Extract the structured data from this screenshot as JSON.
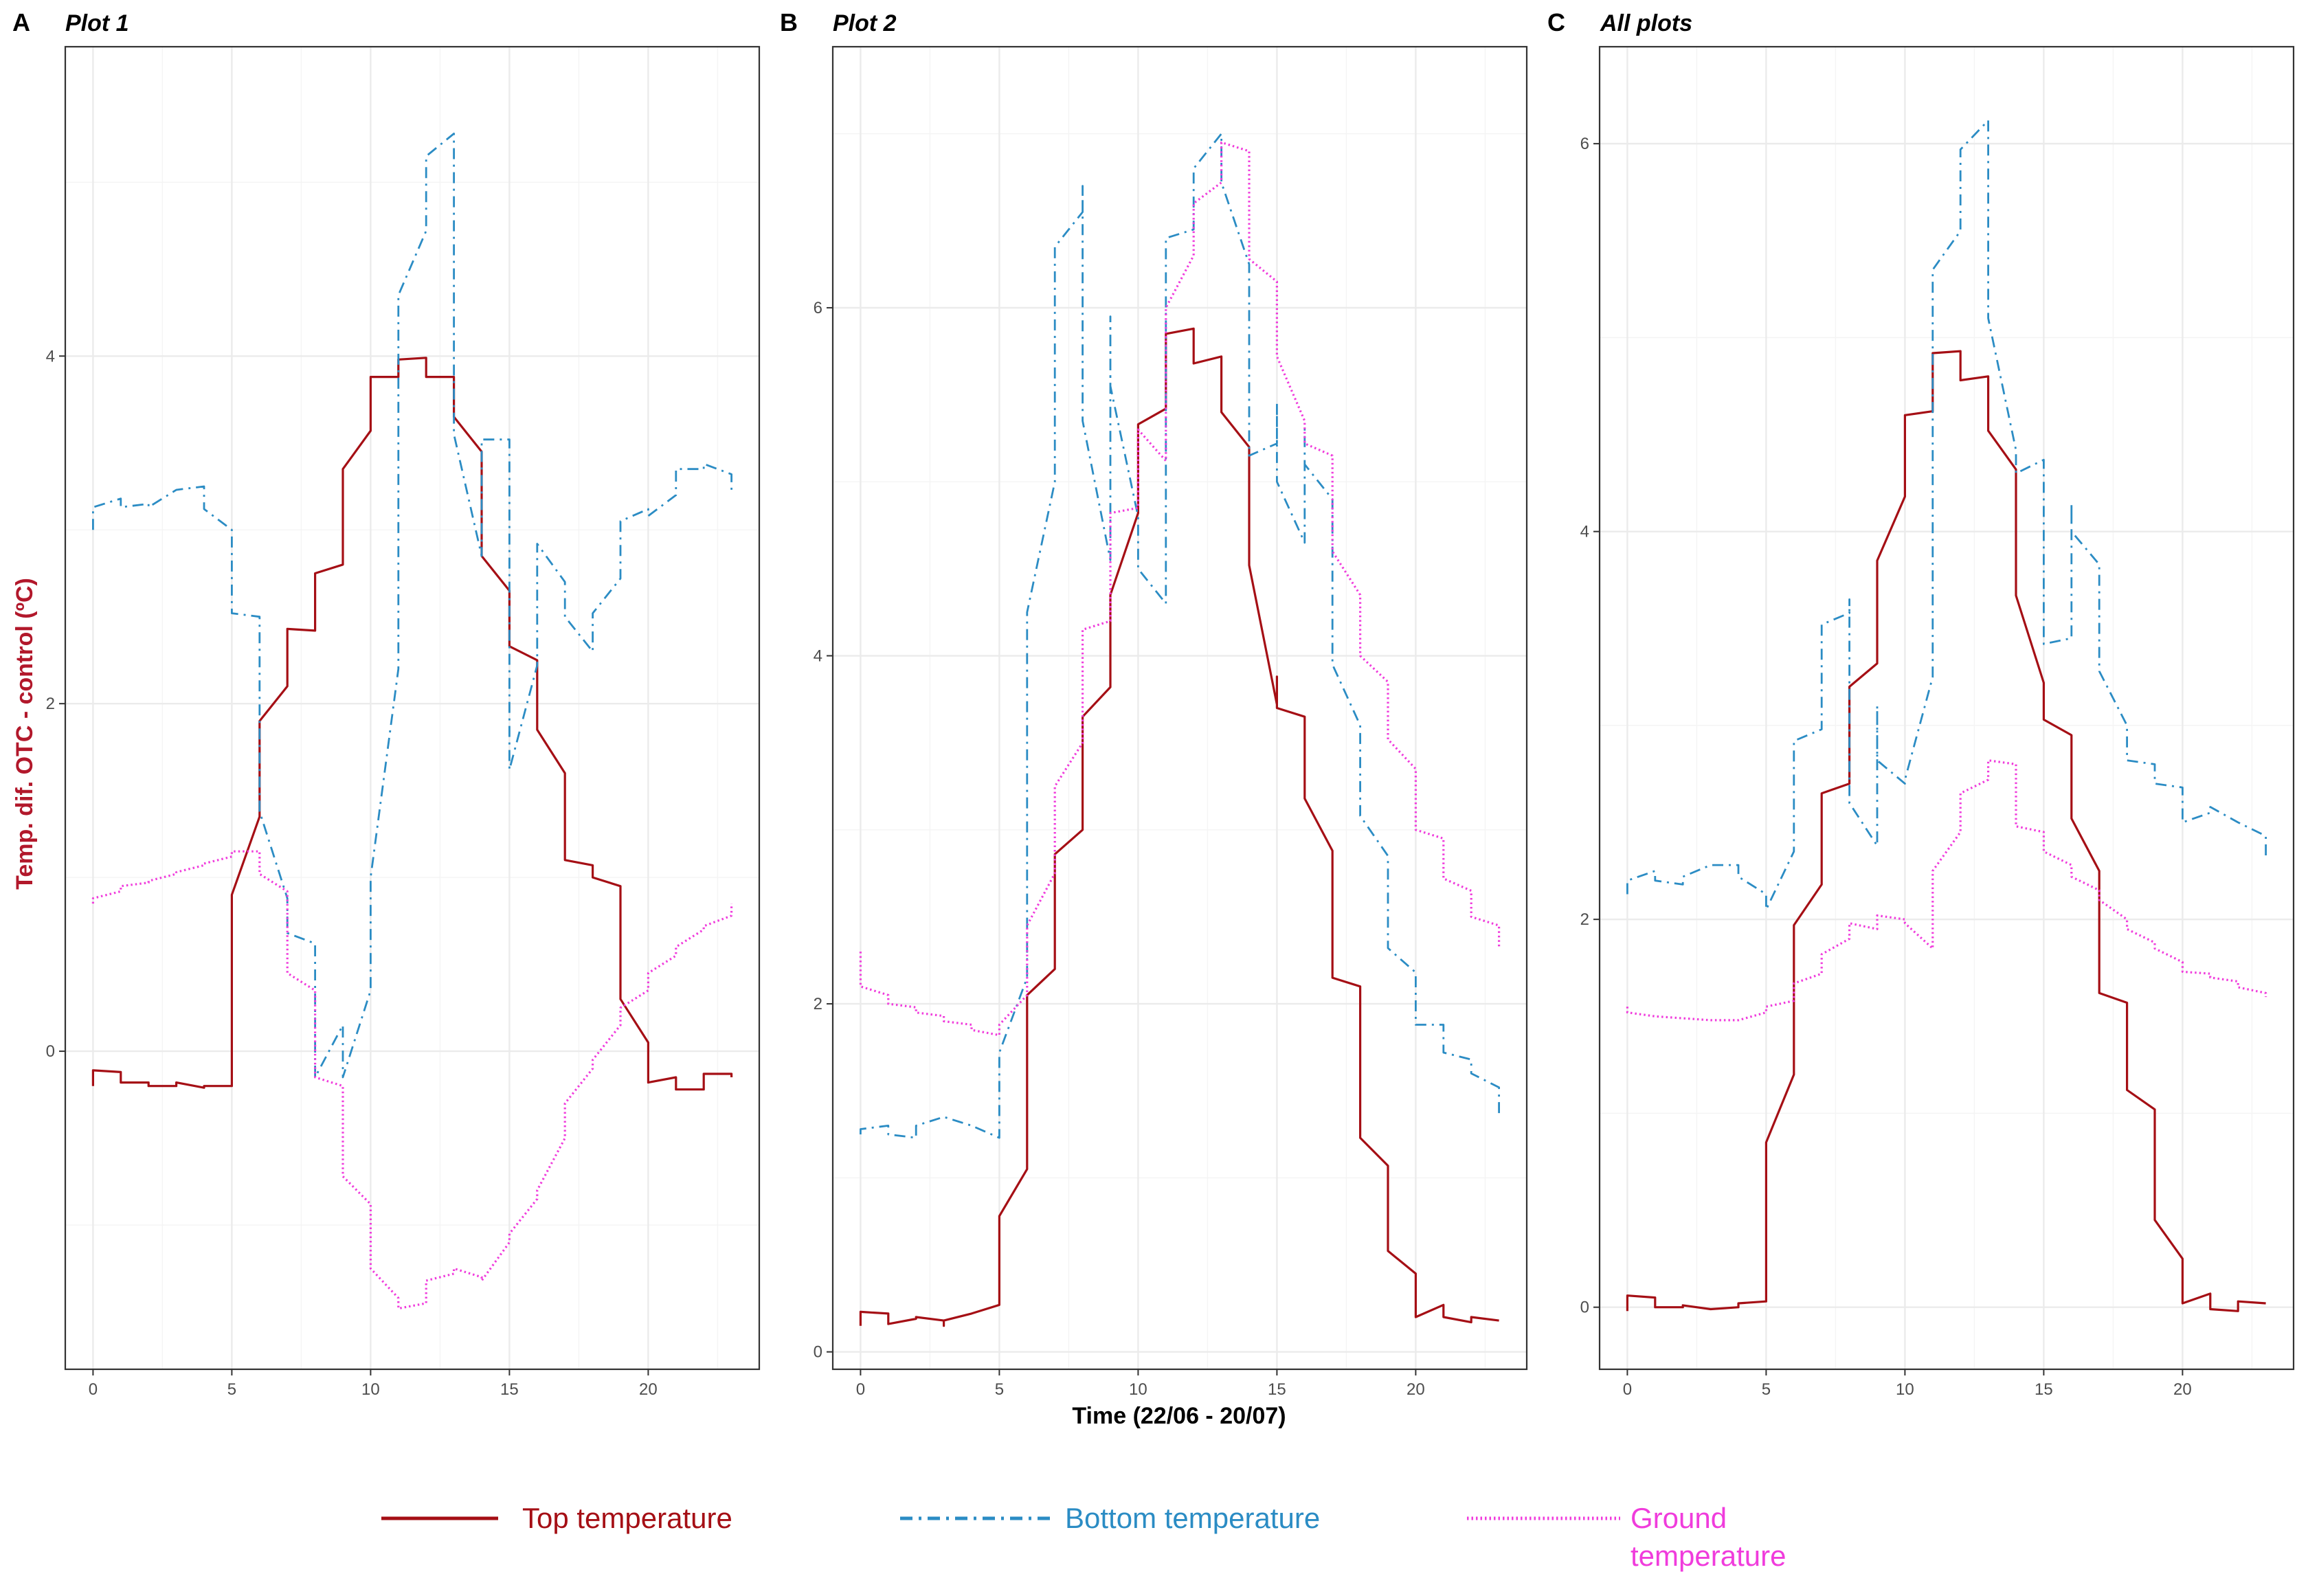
{
  "colors": {
    "top": "#a50f15",
    "bottom": "#2b8cc4",
    "ground": "#f03cdc",
    "ylabel": "#b2182b"
  },
  "series_styles": {
    "top": "solid",
    "bottom": "dash-dot",
    "ground": "dotted"
  },
  "legend": {
    "position": "bottom",
    "items": [
      {
        "key": "top",
        "label": "Top temperature"
      },
      {
        "key": "bottom",
        "label": "Bottom temperature"
      },
      {
        "key": "ground",
        "label": "Ground temperature",
        "lines": [
          "Ground",
          "temperature"
        ]
      }
    ]
  },
  "chart_data": [
    {
      "panel": "A",
      "type": "line",
      "title": "Plot 1",
      "ylabel": "Temp. dif. OTC - control (ºC)",
      "xlabel": "",
      "xlim": [
        -1,
        24
      ],
      "ylim": [
        -1.83,
        5.78
      ],
      "xticks": [
        0,
        5,
        10,
        15,
        20
      ],
      "yticks": [
        0,
        2,
        4
      ],
      "grid": true,
      "series": [
        {
          "key": "top",
          "name": "Top temperature",
          "x": [
            0,
            0,
            0.001,
            1,
            1.001,
            2,
            2.001,
            3,
            3.001,
            4,
            4.001,
            5,
            5,
            6,
            6,
            7,
            7,
            8,
            8,
            9,
            9,
            10,
            10,
            11,
            11,
            12,
            12,
            13,
            13,
            14,
            14,
            15,
            15,
            16,
            16,
            17,
            17,
            18,
            18,
            19,
            19,
            20,
            20,
            21,
            21,
            22,
            22,
            23,
            23
          ],
          "y": [
            -0.2,
            -0.11,
            -0.11,
            -0.12,
            -0.18,
            -0.18,
            -0.2,
            -0.2,
            -0.18,
            -0.21,
            -0.2,
            -0.2,
            0.9,
            1.35,
            1.9,
            2.1,
            2.43,
            2.42,
            2.75,
            2.8,
            3.35,
            3.57,
            3.88,
            3.88,
            3.98,
            3.99,
            3.88,
            3.88,
            3.65,
            3.45,
            2.85,
            2.65,
            2.33,
            2.25,
            1.85,
            1.6,
            1.1,
            1.07,
            1.0,
            0.95,
            0.3,
            0.05,
            -0.18,
            -0.15,
            -0.22,
            -0.22,
            -0.13,
            -0.13,
            -0.15
          ]
        },
        {
          "key": "bottom",
          "name": "Bottom temperature",
          "x": [
            0,
            0,
            0.001,
            1,
            1.001,
            2,
            2.001,
            3,
            3.001,
            4,
            4.001,
            5,
            5,
            6,
            6,
            7,
            7,
            8,
            8,
            9,
            9,
            10,
            10,
            11,
            11,
            12,
            12,
            13,
            13,
            14,
            14,
            15,
            15,
            16,
            16,
            17,
            17,
            18,
            18,
            19,
            19,
            20,
            20,
            21,
            21,
            22,
            22,
            23,
            23
          ],
          "y": [
            3.0,
            3.13,
            3.13,
            3.18,
            3.13,
            3.15,
            3.13,
            3.23,
            3.23,
            3.25,
            3.12,
            3.0,
            2.52,
            2.5,
            1.38,
            0.88,
            0.68,
            0.62,
            -0.15,
            0.15,
            -0.15,
            0.35,
            1.0,
            2.2,
            4.35,
            4.72,
            5.15,
            5.28,
            3.55,
            2.85,
            3.52,
            3.52,
            1.62,
            2.22,
            2.92,
            2.7,
            2.5,
            2.3,
            2.52,
            2.72,
            3.05,
            3.12,
            3.08,
            3.2,
            3.35,
            3.35,
            3.38,
            3.32,
            3.22
          ]
        },
        {
          "key": "ground",
          "name": "Ground temperature",
          "x": [
            0,
            0,
            0.001,
            1,
            1.001,
            2,
            2.001,
            3,
            3.001,
            4,
            4.001,
            5,
            5.001,
            6,
            6.001,
            7,
            7.001,
            8,
            8.001,
            9,
            9.001,
            10,
            10.001,
            11,
            11.001,
            12,
            12.001,
            13,
            13.001,
            14,
            14.001,
            15,
            15.001,
            16,
            16.001,
            17,
            17.001,
            18,
            18.001,
            19,
            19.001,
            20,
            20.001,
            21,
            21.001,
            22,
            22.001,
            23,
            23
          ],
          "y": [
            0.85,
            0.87,
            0.88,
            0.92,
            0.95,
            0.97,
            0.98,
            1.02,
            1.03,
            1.07,
            1.08,
            1.12,
            1.15,
            1.15,
            1.02,
            0.92,
            0.45,
            0.35,
            -0.15,
            -0.2,
            -0.72,
            -0.88,
            -1.25,
            -1.42,
            -1.48,
            -1.45,
            -1.32,
            -1.28,
            -1.25,
            -1.3,
            -1.32,
            -1.1,
            -1.05,
            -0.85,
            -0.8,
            -0.5,
            -0.3,
            -0.1,
            -0.05,
            0.15,
            0.25,
            0.35,
            0.45,
            0.55,
            0.6,
            0.7,
            0.72,
            0.78,
            0.85
          ]
        }
      ]
    },
    {
      "panel": "B",
      "type": "line",
      "title": "Plot 2",
      "ylabel": "",
      "xlabel": "Time (22/06 - 20/07)",
      "xlim": [
        -1,
        24
      ],
      "ylim": [
        -0.1,
        7.5
      ],
      "xticks": [
        0,
        5,
        10,
        15,
        20
      ],
      "yticks": [
        0,
        2,
        4,
        6
      ],
      "grid": true,
      "series": [
        {
          "key": "top",
          "name": "Top temperature",
          "x": [
            0,
            0,
            0.001,
            1,
            1,
            1.001,
            2,
            2.001,
            3,
            3,
            3.001,
            4,
            4.001,
            5,
            5,
            6,
            6,
            7,
            7,
            7,
            7.001,
            8,
            8,
            9,
            9,
            10,
            10,
            11,
            11,
            12,
            12,
            13,
            13,
            14,
            14,
            14,
            15,
            15,
            15,
            16,
            16,
            17,
            17,
            18,
            18,
            19,
            19,
            20,
            20,
            21,
            21,
            22,
            22,
            23
          ],
          "y": [
            0.15,
            0.23,
            0.23,
            0.22,
            0.16,
            0.16,
            0.19,
            0.2,
            0.18,
            0.15,
            0.18,
            0.22,
            0.22,
            0.27,
            0.78,
            1.05,
            2.05,
            2.2,
            2.2,
            2.85,
            2.86,
            3.0,
            3.65,
            3.82,
            4.35,
            4.82,
            5.33,
            5.42,
            5.85,
            5.88,
            5.68,
            5.72,
            5.4,
            5.2,
            4.85,
            4.52,
            3.72,
            3.88,
            3.7,
            3.65,
            3.18,
            2.88,
            2.15,
            2.1,
            1.23,
            1.07,
            0.58,
            0.45,
            0.2,
            0.27,
            0.2,
            0.17,
            0.2,
            0.18
          ]
        },
        {
          "key": "bottom",
          "name": "Bottom temperature",
          "x": [
            0,
            0,
            0.001,
            1,
            1,
            1.001,
            2,
            2.001,
            3,
            3.001,
            4,
            4.001,
            5,
            5,
            6,
            6,
            7,
            7,
            8,
            8,
            8,
            9,
            9,
            9,
            10,
            10,
            11,
            11,
            12,
            12,
            13,
            13,
            14,
            14,
            14,
            15,
            15,
            15,
            16,
            16,
            16,
            17,
            17,
            18,
            18,
            19,
            19,
            20,
            20,
            21,
            21,
            22,
            22,
            23,
            23
          ],
          "y": [
            1.25,
            1.28,
            1.28,
            1.3,
            1.25,
            1.25,
            1.23,
            1.3,
            1.35,
            1.35,
            1.3,
            1.3,
            1.23,
            1.72,
            2.15,
            4.25,
            5.0,
            6.35,
            6.55,
            6.7,
            5.35,
            4.55,
            5.95,
            5.55,
            4.8,
            4.5,
            4.3,
            6.4,
            6.45,
            6.8,
            7.0,
            6.72,
            6.25,
            5.72,
            5.15,
            5.22,
            5.45,
            5.0,
            4.65,
            5.3,
            5.1,
            4.9,
            3.95,
            3.6,
            3.08,
            2.85,
            2.32,
            2.18,
            1.88,
            1.88,
            1.72,
            1.68,
            1.6,
            1.52,
            1.37
          ]
        },
        {
          "key": "ground",
          "name": "Ground temperature",
          "x": [
            0,
            0,
            0.001,
            1,
            1.001,
            2,
            2.001,
            3,
            3.001,
            4,
            4.001,
            5,
            5.001,
            6,
            6.001,
            7,
            7.001,
            8,
            8.001,
            9,
            9.001,
            10,
            10.001,
            11,
            11.001,
            12,
            12.001,
            13,
            13.001,
            14,
            14.001,
            15,
            15.001,
            16,
            16.001,
            17,
            17.001,
            18,
            18.001,
            19,
            19.001,
            20,
            20.001,
            21,
            21.001,
            22,
            22.001,
            23,
            23
          ],
          "y": [
            2.3,
            2.22,
            2.1,
            2.05,
            2.0,
            1.98,
            1.95,
            1.93,
            1.9,
            1.88,
            1.85,
            1.82,
            1.88,
            2.05,
            2.45,
            2.75,
            3.25,
            3.5,
            4.15,
            4.2,
            4.82,
            4.85,
            5.3,
            5.12,
            6.0,
            6.3,
            6.6,
            6.72,
            6.95,
            6.9,
            6.28,
            6.15,
            5.72,
            5.35,
            5.22,
            5.15,
            4.6,
            4.35,
            4.0,
            3.85,
            3.52,
            3.35,
            3.0,
            2.95,
            2.72,
            2.65,
            2.5,
            2.45,
            2.32
          ]
        }
      ]
    },
    {
      "panel": "C",
      "type": "line",
      "title": "All plots",
      "ylabel": "",
      "xlabel": "",
      "xlim": [
        -1,
        24
      ],
      "ylim": [
        -0.32,
        6.5
      ],
      "xticks": [
        0,
        5,
        10,
        15,
        20
      ],
      "yticks": [
        0,
        2,
        4,
        6
      ],
      "grid": true,
      "series": [
        {
          "key": "top",
          "name": "Top temperature",
          "x": [
            0,
            0,
            0.001,
            1,
            1.001,
            2,
            2.001,
            3,
            3.001,
            4,
            4.001,
            5,
            5,
            6,
            6,
            7,
            7,
            8,
            8,
            9,
            9,
            10,
            10,
            11,
            11,
            12,
            12,
            13,
            13,
            14,
            14,
            15,
            15,
            16,
            16,
            17,
            17,
            17.001,
            18,
            18,
            19,
            19,
            20,
            20,
            21,
            21,
            22,
            22,
            23
          ],
          "y": [
            -0.02,
            0.06,
            0.06,
            0.05,
            0.0,
            0.0,
            0.01,
            -0.01,
            -0.01,
            0.0,
            0.02,
            0.03,
            0.85,
            1.2,
            1.97,
            2.18,
            2.65,
            2.7,
            3.2,
            3.32,
            3.85,
            4.18,
            4.6,
            4.62,
            4.92,
            4.93,
            4.78,
            4.8,
            4.52,
            4.32,
            3.67,
            3.22,
            3.03,
            2.95,
            2.52,
            2.25,
            1.62,
            1.62,
            1.57,
            1.12,
            1.02,
            0.45,
            0.25,
            0.02,
            0.07,
            -0.01,
            -0.02,
            0.03,
            0.02
          ]
        },
        {
          "key": "bottom",
          "name": "Bottom temperature",
          "x": [
            0,
            0,
            0.001,
            1,
            1.001,
            2,
            2.001,
            3,
            3.001,
            4,
            4.001,
            5,
            5,
            6,
            6,
            7,
            7,
            8,
            8,
            8,
            9,
            9,
            9,
            10,
            10,
            11,
            11,
            12,
            12,
            13,
            13,
            14,
            14,
            14.001,
            15,
            15,
            15.001,
            16,
            16,
            16.001,
            17,
            17,
            18,
            18,
            19,
            19,
            20,
            20,
            21,
            21,
            22,
            22,
            23,
            23
          ],
          "y": [
            2.13,
            2.2,
            2.2,
            2.25,
            2.2,
            2.18,
            2.22,
            2.28,
            2.28,
            2.28,
            2.22,
            2.13,
            2.05,
            2.35,
            2.92,
            2.98,
            3.52,
            3.58,
            3.65,
            2.6,
            2.38,
            3.1,
            2.82,
            2.7,
            2.72,
            3.25,
            5.35,
            5.55,
            5.97,
            6.12,
            5.1,
            4.42,
            4.3,
            4.3,
            4.37,
            3.42,
            3.42,
            3.45,
            4.15,
            4.0,
            3.83,
            3.28,
            3.0,
            2.82,
            2.8,
            2.7,
            2.68,
            2.5,
            2.55,
            2.58,
            2.5,
            2.5,
            2.43,
            2.33
          ]
        },
        {
          "key": "ground",
          "name": "Ground temperature",
          "x": [
            0,
            0,
            0.001,
            1,
            1.001,
            2,
            2.001,
            3,
            3.001,
            4,
            4.001,
            5,
            5.001,
            6,
            6.001,
            7,
            7.001,
            8,
            8.001,
            9,
            9.001,
            10,
            10.001,
            11,
            11.001,
            12,
            12.001,
            13,
            13.001,
            14,
            14.001,
            15,
            15.001,
            16,
            16.001,
            17,
            17.001,
            18,
            18.001,
            19,
            19.001,
            20,
            20.001,
            21,
            21.001,
            22,
            22.001,
            23,
            23
          ],
          "y": [
            1.55,
            1.52,
            1.52,
            1.5,
            1.5,
            1.49,
            1.49,
            1.48,
            1.48,
            1.48,
            1.48,
            1.52,
            1.55,
            1.58,
            1.67,
            1.72,
            1.82,
            1.9,
            1.98,
            1.95,
            2.02,
            2.0,
            1.98,
            1.85,
            2.25,
            2.45,
            2.65,
            2.72,
            2.82,
            2.8,
            2.48,
            2.45,
            2.35,
            2.28,
            2.22,
            2.15,
            2.1,
            2.0,
            1.95,
            1.88,
            1.85,
            1.78,
            1.73,
            1.72,
            1.7,
            1.68,
            1.65,
            1.62,
            1.6
          ]
        }
      ]
    }
  ]
}
